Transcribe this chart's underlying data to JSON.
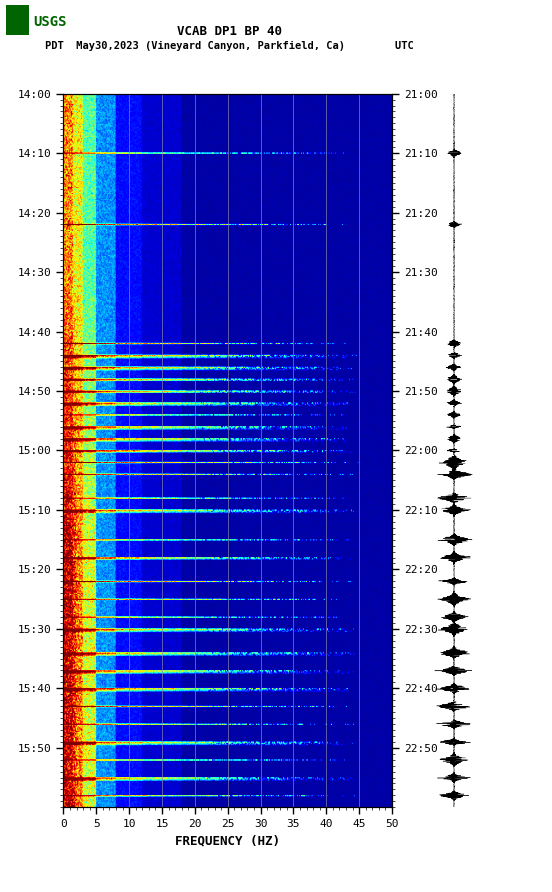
{
  "title_line1": "VCAB DP1 BP 40",
  "title_line2": "PDT  May30,2023 (Vineyard Canyon, Parkfield, Ca)        UTC",
  "xlabel": "FREQUENCY (HZ)",
  "left_yticks": [
    "14:00",
    "14:10",
    "14:20",
    "14:30",
    "14:40",
    "14:50",
    "15:00",
    "15:10",
    "15:20",
    "15:30",
    "15:40",
    "15:50"
  ],
  "right_yticks": [
    "21:00",
    "21:10",
    "21:20",
    "21:30",
    "21:40",
    "21:50",
    "22:00",
    "22:10",
    "22:20",
    "22:30",
    "22:40",
    "22:50"
  ],
  "xlim": [
    0,
    50
  ],
  "freq_ticks": [
    0,
    5,
    10,
    15,
    20,
    25,
    30,
    35,
    40,
    45,
    50
  ],
  "vertical_lines_freq": [
    10,
    15,
    20,
    25,
    30,
    35,
    40,
    45
  ],
  "background_color": "#ffffff",
  "colormap": "jet",
  "fig_width": 5.52,
  "fig_height": 8.92,
  "dpi": 100,
  "n_time": 600,
  "n_freq": 500,
  "freq_max": 50.0,
  "usgs_color": "#006400"
}
